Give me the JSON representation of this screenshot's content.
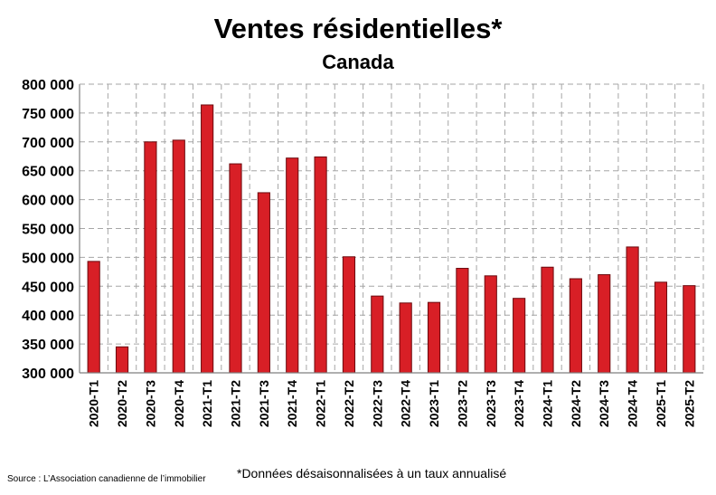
{
  "chart_data": {
    "type": "bar",
    "title": "Ventes résidentielles*",
    "subtitle": "Canada",
    "footnote": "*Données désaisonnalisées à un taux annualisé",
    "source": "Source : L’Association canadienne de l’immobilier",
    "categories": [
      "2020-T1",
      "2020-T2",
      "2020-T3",
      "2020-T4",
      "2021-T1",
      "2021-T2",
      "2021-T3",
      "2021-T4",
      "2022-T1",
      "2022-T2",
      "2022-T3",
      "2022-T4",
      "2023-T1",
      "2023-T2",
      "2023-T3",
      "2023-T4",
      "2024-T1",
      "2024-T2",
      "2024-T3",
      "2024-T4",
      "2025-T1",
      "2025-T2"
    ],
    "values": [
      493000,
      345000,
      700000,
      703000,
      764000,
      662000,
      612000,
      672000,
      674000,
      501000,
      433000,
      421000,
      422000,
      481000,
      468000,
      429000,
      483000,
      463000,
      470000,
      518000,
      457000,
      451000
    ],
    "ylim": [
      300000,
      800000
    ],
    "yticks": [
      "300 000",
      "350 000",
      "400 000",
      "450 000",
      "500 000",
      "550 000",
      "600 000",
      "650 000",
      "700 000",
      "750 000",
      "800 000"
    ],
    "ytick_values": [
      300000,
      350000,
      400000,
      450000,
      500000,
      550000,
      600000,
      650000,
      700000,
      750000,
      800000
    ],
    "grid": true,
    "bar_color": "#d81f26"
  }
}
